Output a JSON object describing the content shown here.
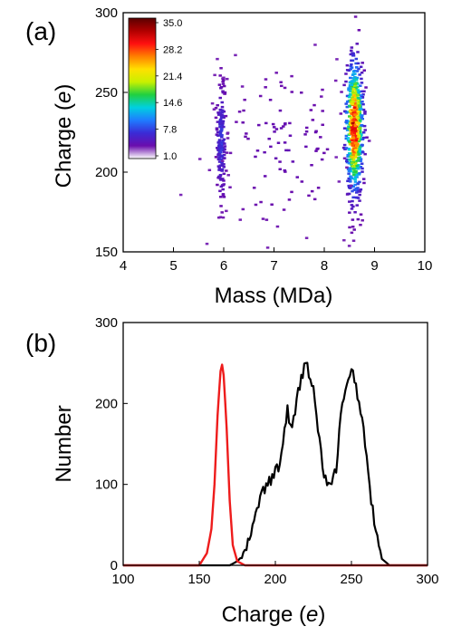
{
  "chart_data": [
    {
      "panel_label": "(a)",
      "type": "heatmap",
      "xlabel": "Mass (MDa)",
      "ylabel_main": "Charge (",
      "ylabel_unit": "e",
      "ylabel_close": ")",
      "xlim": [
        4,
        10
      ],
      "ylim": [
        150,
        300
      ],
      "xticks": [
        "4",
        "5",
        "6",
        "7",
        "8",
        "9",
        "10"
      ],
      "yticks": [
        "150",
        "200",
        "250",
        "300"
      ],
      "colorbar": {
        "ticks": [
          "35.0",
          "28.2",
          "21.4",
          "14.6",
          "7.8",
          "1.0"
        ],
        "range": [
          1.0,
          35.0
        ],
        "colors": [
          "#ffffff",
          "#6a0dad",
          "#3a2bd6",
          "#1f7cff",
          "#00d0e0",
          "#20d040",
          "#c8f000",
          "#ffe000",
          "#ff8000",
          "#ff1010",
          "#b00000",
          "#5a0000"
        ]
      },
      "clusters": [
        {
          "mass": 5.95,
          "charge": 220,
          "mass_sd": 0.05,
          "charge_sd": 20,
          "count": 170,
          "peak": 6
        },
        {
          "mass": 8.6,
          "charge": 228,
          "mass_sd": 0.09,
          "charge_sd": 22,
          "count": 650,
          "peak": 35
        },
        {
          "mass": 7.2,
          "charge": 215,
          "mass_sd": 0.7,
          "charge_sd": 28,
          "count": 110,
          "peak": 2
        }
      ]
    },
    {
      "panel_label": "(b)",
      "type": "line",
      "xlabel_main": "Charge (",
      "xlabel_unit": "e",
      "xlabel_close": ")",
      "ylabel": "Number",
      "xlim": [
        100,
        300
      ],
      "ylim": [
        0,
        300
      ],
      "xticks": [
        "100",
        "150",
        "200",
        "250",
        "300"
      ],
      "yticks": [
        "0",
        "100",
        "200",
        "300"
      ],
      "series": [
        {
          "color": "#000000",
          "x": [
            100,
            150,
            170,
            175,
            180,
            185,
            190,
            195,
            200,
            203,
            206,
            208,
            210,
            213,
            215,
            218,
            220,
            223,
            225,
            228,
            232,
            236,
            240,
            243,
            246,
            248,
            250,
            252,
            255,
            258,
            262,
            266,
            270,
            275,
            300
          ],
          "y": [
            0,
            0,
            0,
            5,
            15,
            45,
            85,
            100,
            115,
            125,
            165,
            195,
            170,
            185,
            215,
            238,
            255,
            230,
            215,
            170,
            110,
            95,
            120,
            185,
            215,
            225,
            240,
            232,
            200,
            170,
            95,
            40,
            8,
            0,
            0
          ]
        },
        {
          "color": "#ee1c1c",
          "x": [
            100,
            150,
            155,
            158,
            160,
            162,
            164,
            165,
            166,
            168,
            170,
            172,
            175,
            180,
            300
          ],
          "y": [
            0,
            0,
            15,
            45,
            100,
            185,
            240,
            248,
            235,
            170,
            80,
            25,
            5,
            0,
            0
          ]
        }
      ]
    }
  ]
}
